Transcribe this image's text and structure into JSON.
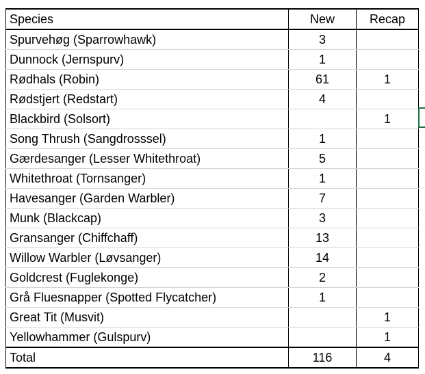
{
  "table": {
    "columns": [
      "Species",
      "New",
      "Recap"
    ],
    "rows": [
      {
        "species": "Spurvehøg (Sparrowhawk)",
        "new": "3",
        "recap": ""
      },
      {
        "species": "Dunnock (Jernspurv)",
        "new": "1",
        "recap": ""
      },
      {
        "species": "Rødhals (Robin)",
        "new": "61",
        "recap": "1"
      },
      {
        "species": "Rødstjert (Redstart)",
        "new": "4",
        "recap": ""
      },
      {
        "species": "Blackbird (Solsort)",
        "new": "",
        "recap": "1"
      },
      {
        "species": "Song Thrush (Sangdrosssel)",
        "new": "1",
        "recap": ""
      },
      {
        "species": "Gærdesanger (Lesser Whitethroat)",
        "new": "5",
        "recap": ""
      },
      {
        "species": "Whitethroat (Tornsanger)",
        "new": "1",
        "recap": ""
      },
      {
        "species": "Havesanger (Garden Warbler)",
        "new": "7",
        "recap": ""
      },
      {
        "species": "Munk (Blackcap)",
        "new": "3",
        "recap": ""
      },
      {
        "species": "Gransanger (Chiffchaff)",
        "new": "13",
        "recap": ""
      },
      {
        "species": "Willow Warbler (Løvsanger)",
        "new": "14",
        "recap": ""
      },
      {
        "species": "Goldcrest (Fuglekonge)",
        "new": "2",
        "recap": ""
      },
      {
        "species": "Grå Fluesnapper (Spotted Flycatcher)",
        "new": "1",
        "recap": ""
      },
      {
        "species": "Great Tit (Musvit)",
        "new": "",
        "recap": "1"
      },
      {
        "species": "Yellowhammer (Gulspurv)",
        "new": "",
        "recap": "1"
      }
    ],
    "total": {
      "label": "Total",
      "new": "116",
      "recap": "4"
    }
  },
  "colors": {
    "grid_border": "#000000",
    "gridline": "#d4d4d4",
    "selection": "#217346"
  }
}
